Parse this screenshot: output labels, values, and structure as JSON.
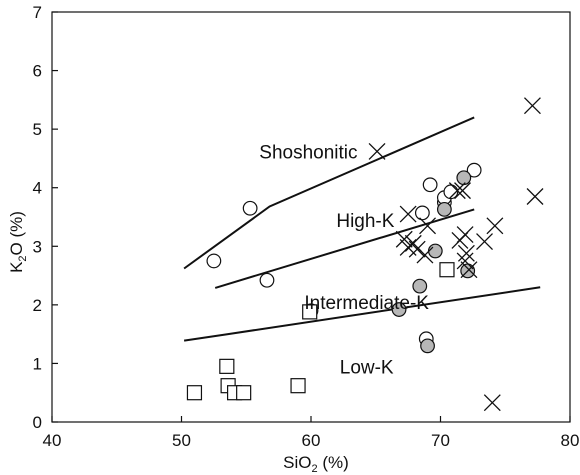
{
  "chart_data": {
    "type": "scatter",
    "x_axis": {
      "range": [
        40,
        80
      ],
      "ticks": [
        40,
        50,
        60,
        70,
        80
      ],
      "label": "SiO2 (%)",
      "label_main": "SiO",
      "label_sub": "2",
      "label_tail": " (%)"
    },
    "y_axis": {
      "range": [
        0,
        7
      ],
      "ticks": [
        0,
        1,
        2,
        3,
        4,
        5,
        6,
        7
      ],
      "label": "K2O (%)",
      "label_main": "K",
      "label_sub": "2",
      "label_tail": "O (%)"
    },
    "grid": false,
    "boundaries": [
      {
        "points": [
          [
            50.2,
            2.62
          ],
          [
            56.8,
            3.68
          ],
          [
            72.6,
            5.2
          ]
        ]
      },
      {
        "points": [
          [
            52.6,
            2.29
          ],
          [
            72.6,
            3.63
          ]
        ]
      },
      {
        "points": [
          [
            50.2,
            1.39
          ],
          [
            53.6,
            1.5
          ],
          [
            77.7,
            2.3
          ]
        ]
      }
    ],
    "region_labels": [
      {
        "text": "Shoshonitic",
        "x": 59.8,
        "y": 4.62
      },
      {
        "text": "High-K",
        "x": 64.2,
        "y": 3.45
      },
      {
        "text": "Intermediate-K",
        "x": 64.3,
        "y": 2.05
      },
      {
        "text": "Low-K",
        "x": 64.3,
        "y": 0.95
      }
    ],
    "series": [
      {
        "marker": "open-circle",
        "points": [
          [
            52.5,
            2.75
          ],
          [
            55.3,
            3.65
          ],
          [
            56.6,
            2.42
          ],
          [
            60.0,
            1.9
          ],
          [
            68.6,
            3.57
          ],
          [
            69.2,
            4.05
          ],
          [
            70.3,
            3.75
          ],
          [
            70.3,
            3.83
          ],
          [
            70.8,
            3.93
          ],
          [
            72.6,
            4.3
          ],
          [
            68.9,
            1.42
          ]
        ]
      },
      {
        "marker": "filled-circle",
        "points": [
          [
            69.6,
            2.92
          ],
          [
            70.3,
            3.63
          ],
          [
            71.8,
            4.17
          ],
          [
            68.4,
            2.32
          ],
          [
            66.8,
            1.92
          ],
          [
            69.0,
            1.3
          ],
          [
            72.1,
            2.58
          ]
        ]
      },
      {
        "marker": "square",
        "points": [
          [
            51.0,
            0.5
          ],
          [
            53.5,
            0.95
          ],
          [
            53.6,
            0.62
          ],
          [
            54.1,
            0.5
          ],
          [
            54.8,
            0.5
          ],
          [
            59.0,
            0.62
          ],
          [
            59.9,
            1.88
          ],
          [
            70.5,
            2.6
          ]
        ]
      },
      {
        "marker": "cross",
        "points": [
          [
            65.1,
            4.62
          ],
          [
            67.5,
            3.55
          ],
          [
            67.2,
            3.12
          ],
          [
            67.5,
            2.98
          ],
          [
            67.9,
            3.05
          ],
          [
            68.2,
            2.95
          ],
          [
            69.0,
            3.35
          ],
          [
            68.8,
            2.85
          ],
          [
            71.3,
            3.95
          ],
          [
            71.7,
            3.95
          ],
          [
            71.5,
            3.1
          ],
          [
            71.9,
            3.2
          ],
          [
            72.0,
            2.88
          ],
          [
            71.9,
            2.75
          ],
          [
            72.2,
            2.6
          ],
          [
            73.4,
            3.08
          ],
          [
            74.2,
            3.35
          ],
          [
            77.1,
            5.4
          ],
          [
            77.3,
            3.85
          ],
          [
            74.0,
            0.33
          ]
        ]
      }
    ],
    "style": {
      "marker_fill": "#b7b7b7",
      "stroke": "#111111"
    }
  }
}
